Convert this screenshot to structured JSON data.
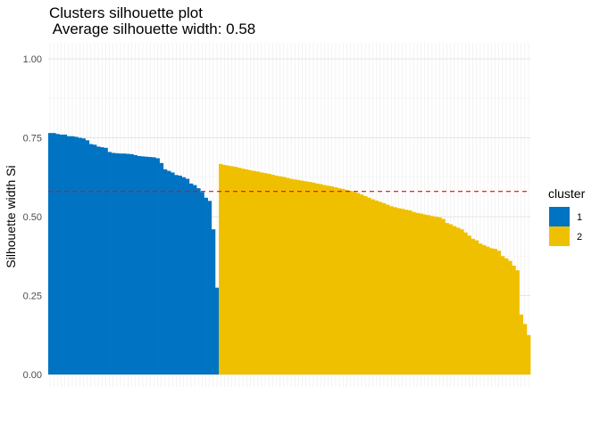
{
  "title": "Clusters silhouette plot",
  "subtitle": " Average silhouette width: 0.58",
  "chart_data": {
    "type": "bar",
    "title": "Clusters silhouette plot",
    "subtitle": " Average silhouette width: 0.58",
    "xlabel": "",
    "ylabel": "Silhouette width Si",
    "ylim": [
      0,
      1.05
    ],
    "yticks": [
      0,
      0.25,
      0.5,
      0.75,
      1
    ],
    "ytick_labels": [
      "0.00",
      "0.25",
      "0.50",
      "0.75",
      "1.00"
    ],
    "grid": true,
    "average_line": {
      "value": 0.58,
      "color": "#ff0000",
      "style": "dashed"
    },
    "legend": {
      "title": "cluster",
      "position": "right",
      "entries": [
        {
          "label": "1",
          "color": "#0073c2"
        },
        {
          "label": "2",
          "color": "#efc000"
        }
      ]
    },
    "series": [
      {
        "cluster": "1",
        "color": "#0073c2",
        "values": [
          0.765,
          0.765,
          0.762,
          0.76,
          0.76,
          0.755,
          0.755,
          0.753,
          0.75,
          0.748,
          0.742,
          0.73,
          0.728,
          0.722,
          0.72,
          0.718,
          0.705,
          0.702,
          0.701,
          0.7,
          0.7,
          0.699,
          0.698,
          0.695,
          0.692,
          0.691,
          0.69,
          0.689,
          0.688,
          0.685,
          0.67,
          0.65,
          0.645,
          0.64,
          0.632,
          0.63,
          0.625,
          0.62,
          0.605,
          0.6,
          0.59,
          0.578,
          0.56,
          0.55,
          0.46,
          0.275
        ]
      },
      {
        "cluster": "2",
        "color": "#efc000",
        "values": [
          0.667,
          0.664,
          0.662,
          0.66,
          0.658,
          0.655,
          0.652,
          0.65,
          0.647,
          0.645,
          0.643,
          0.64,
          0.638,
          0.636,
          0.633,
          0.63,
          0.628,
          0.626,
          0.623,
          0.62,
          0.618,
          0.616,
          0.614,
          0.612,
          0.61,
          0.608,
          0.605,
          0.603,
          0.6,
          0.598,
          0.596,
          0.593,
          0.59,
          0.588,
          0.585,
          0.582,
          0.578,
          0.575,
          0.57,
          0.565,
          0.56,
          0.555,
          0.551,
          0.547,
          0.543,
          0.538,
          0.533,
          0.53,
          0.527,
          0.525,
          0.522,
          0.52,
          0.515,
          0.512,
          0.51,
          0.507,
          0.505,
          0.502,
          0.5,
          0.498,
          0.493,
          0.48,
          0.476,
          0.47,
          0.465,
          0.46,
          0.45,
          0.44,
          0.43,
          0.425,
          0.415,
          0.41,
          0.405,
          0.4,
          0.398,
          0.392,
          0.375,
          0.368,
          0.36,
          0.345,
          0.33,
          0.19,
          0.16,
          0.125
        ]
      }
    ]
  }
}
